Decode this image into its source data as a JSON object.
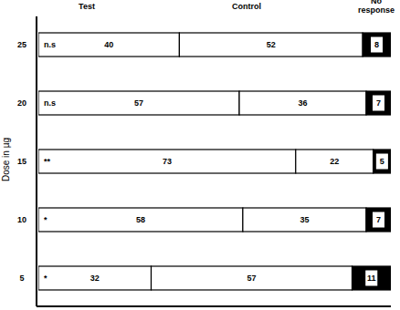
{
  "chart_data": {
    "type": "bar",
    "orientation": "horizontal",
    "stacked": true,
    "data_labels": true,
    "tick_labels": "y",
    "y_label": "Dose in µg",
    "categories": [
      "25",
      "20",
      "15",
      "10",
      "5"
    ],
    "annotations": [
      "n.s",
      "n.s",
      "**",
      "*",
      "*"
    ],
    "series": [
      {
        "name": "Test",
        "color": "#ffffff",
        "values": [
          40,
          57,
          73,
          58,
          32
        ]
      },
      {
        "name": "Control",
        "color": "#ffffff",
        "values": [
          52,
          36,
          22,
          35,
          57
        ]
      },
      {
        "name": "No response",
        "color": "#000000",
        "values": [
          8,
          7,
          5,
          7,
          11
        ]
      }
    ],
    "xlim": [
      0,
      100
    ]
  }
}
